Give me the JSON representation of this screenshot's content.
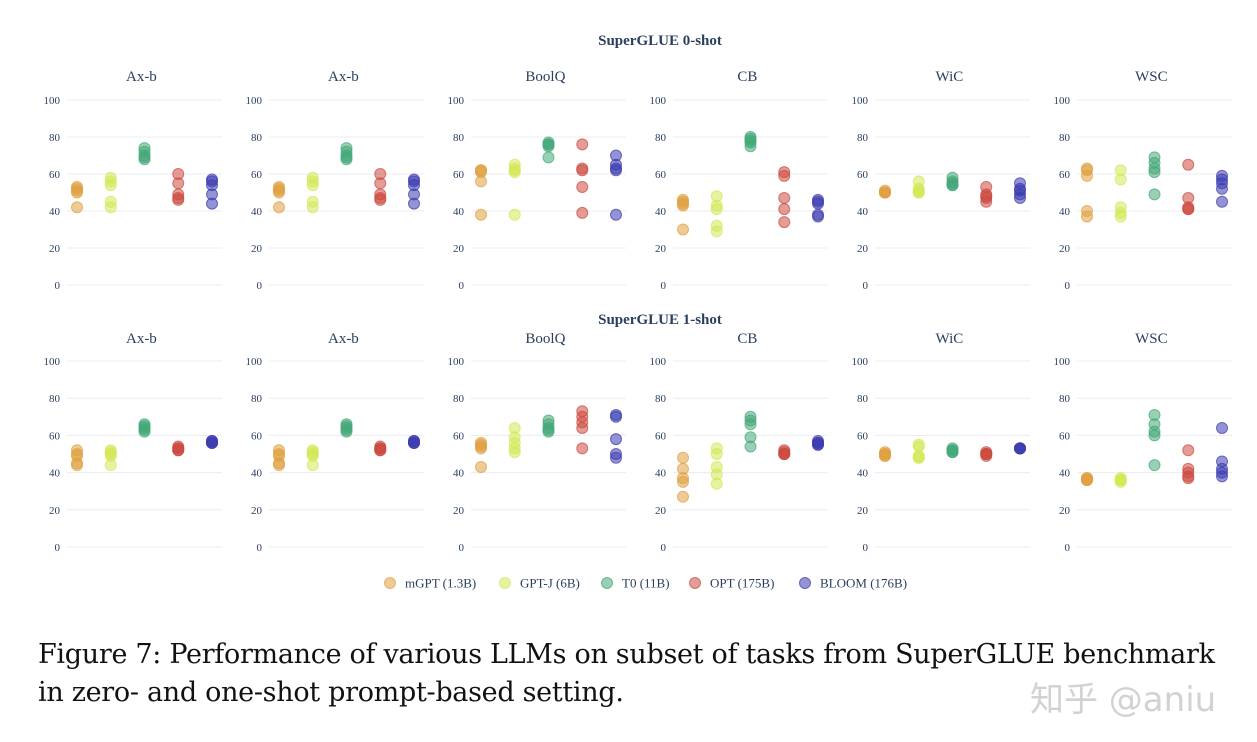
{
  "chart_data": {
    "type": "scatter",
    "ylim": [
      0,
      100
    ],
    "yticks": [
      0,
      20,
      40,
      60,
      80,
      100
    ],
    "models": [
      {
        "name": "mGPT (1.3B)",
        "color": "#e0a040"
      },
      {
        "name": "GPT-J (6B)",
        "color": "#d4e855"
      },
      {
        "name": "T0 (11B)",
        "color": "#44a878"
      },
      {
        "name": "OPT (175B)",
        "color": "#cc4a40"
      },
      {
        "name": "BLOOM (176B)",
        "color": "#3c3cb0"
      }
    ],
    "sections": [
      {
        "title": "SuperGLUE 0-shot",
        "panels": [
          {
            "title": "Ax-b",
            "series": [
              [
                53,
                52,
                51,
                50,
                42
              ],
              [
                58,
                56,
                54,
                45,
                42
              ],
              [
                74,
                72,
                70,
                69,
                68
              ],
              [
                60,
                55,
                49,
                47,
                46
              ],
              [
                57,
                56,
                54,
                49,
                44
              ]
            ]
          },
          {
            "title": "Ax-b",
            "series": [
              [
                53,
                52,
                51,
                50,
                42
              ],
              [
                58,
                56,
                54,
                45,
                42
              ],
              [
                74,
                72,
                70,
                69,
                68
              ],
              [
                60,
                55,
                49,
                47,
                46
              ],
              [
                57,
                56,
                54,
                49,
                44
              ]
            ]
          },
          {
            "title": "BoolQ",
            "series": [
              [
                62,
                62,
                61,
                56,
                38
              ],
              [
                65,
                63,
                62,
                61,
                38
              ],
              [
                77,
                76,
                76,
                75,
                69
              ],
              [
                76,
                63,
                62,
                53,
                39
              ],
              [
                70,
                65,
                63,
                62,
                38
              ]
            ]
          },
          {
            "title": "CB",
            "series": [
              [
                46,
                45,
                44,
                43,
                30
              ],
              [
                48,
                43,
                41,
                32,
                29
              ],
              [
                80,
                79,
                78,
                77,
                75
              ],
              [
                61,
                59,
                47,
                41,
                34
              ],
              [
                46,
                45,
                44,
                38,
                37
              ]
            ]
          },
          {
            "title": "WiC",
            "series": [
              [
                51,
                50,
                50,
                50,
                50
              ],
              [
                56,
                52,
                51,
                50,
                50
              ],
              [
                58,
                56,
                55,
                54,
                54
              ],
              [
                53,
                49,
                48,
                47,
                45
              ],
              [
                55,
                52,
                51,
                49,
                47
              ]
            ]
          },
          {
            "title": "WSC",
            "series": [
              [
                63,
                62,
                59,
                40,
                37
              ],
              [
                62,
                57,
                42,
                39,
                37
              ],
              [
                69,
                66,
                63,
                61,
                49
              ],
              [
                65,
                47,
                42,
                41,
                41
              ],
              [
                59,
                57,
                55,
                52,
                45
              ]
            ]
          }
        ]
      },
      {
        "title": "SuperGLUE 1-shot",
        "panels": [
          {
            "title": "Ax-b",
            "series": [
              [
                52,
                50,
                49,
                45,
                44
              ],
              [
                52,
                51,
                50,
                49,
                44
              ],
              [
                66,
                65,
                64,
                63,
                62
              ],
              [
                54,
                53,
                53,
                52,
                52
              ],
              [
                57,
                57,
                56,
                56,
                56
              ]
            ]
          },
          {
            "title": "Ax-b",
            "series": [
              [
                52,
                50,
                49,
                45,
                44
              ],
              [
                52,
                51,
                50,
                49,
                44
              ],
              [
                66,
                65,
                64,
                63,
                62
              ],
              [
                54,
                53,
                53,
                52,
                52
              ],
              [
                57,
                57,
                56,
                56,
                56
              ]
            ]
          },
          {
            "title": "BoolQ",
            "series": [
              [
                56,
                55,
                54,
                53,
                43
              ],
              [
                64,
                59,
                56,
                53,
                51
              ],
              [
                68,
                66,
                64,
                63,
                62
              ],
              [
                73,
                70,
                67,
                64,
                53
              ],
              [
                71,
                70,
                58,
                50,
                48
              ]
            ]
          },
          {
            "title": "CB",
            "series": [
              [
                48,
                42,
                37,
                35,
                27
              ],
              [
                53,
                50,
                43,
                39,
                34
              ],
              [
                70,
                68,
                66,
                59,
                54
              ],
              [
                52,
                51,
                50,
                50,
                50
              ],
              [
                57,
                56,
                56,
                55,
                55
              ]
            ]
          },
          {
            "title": "WiC",
            "series": [
              [
                51,
                50,
                50,
                49,
                49
              ],
              [
                55,
                54,
                49,
                48,
                48
              ],
              [
                53,
                52,
                52,
                51,
                51
              ],
              [
                51,
                50,
                50,
                50,
                49
              ],
              [
                53,
                53,
                53,
                53,
                53
              ]
            ]
          },
          {
            "title": "WSC",
            "series": [
              [
                37,
                37,
                36,
                36,
                36
              ],
              [
                37,
                36,
                36,
                36,
                35
              ],
              [
                71,
                66,
                62,
                60,
                44
              ],
              [
                52,
                42,
                40,
                38,
                37
              ],
              [
                64,
                46,
                42,
                40,
                38
              ]
            ]
          }
        ]
      }
    ]
  },
  "caption": {
    "text": "Figure 7: Performance of various LLMs on subset of tasks from SuperGLUE benchmark in zero- and one-shot prompt-based setting."
  },
  "watermark": {
    "text": "知乎 @aniu"
  }
}
